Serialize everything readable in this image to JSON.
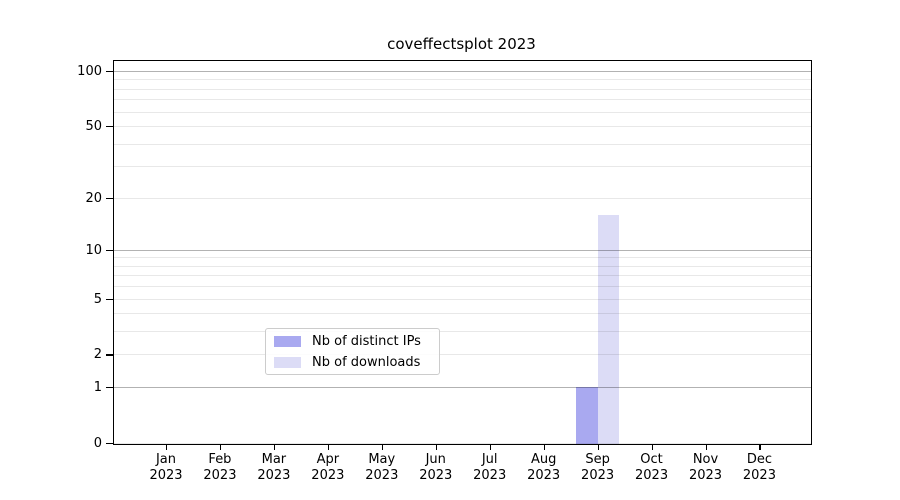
{
  "chart_data": {
    "type": "bar",
    "title": "coveffectsplot 2023",
    "y_scale": "log1p",
    "ylim": [
      0,
      114
    ],
    "grid": true,
    "y_ticks": [
      0,
      1,
      2,
      5,
      10,
      20,
      50,
      100
    ],
    "gridlines_major": [
      1,
      10,
      100
    ],
    "gridlines_minor": [
      0,
      2,
      3,
      4,
      5,
      6,
      7,
      8,
      9,
      20,
      30,
      40,
      50,
      60,
      70,
      80,
      90
    ],
    "categories": [
      "Jan",
      "Feb",
      "Mar",
      "Apr",
      "May",
      "Jun",
      "Jul",
      "Aug",
      "Sep",
      "Oct",
      "Nov",
      "Dec"
    ],
    "category_year": "2023",
    "series": [
      {
        "name": "Nb of distinct IPs",
        "color": "#a9a9f0",
        "values": [
          0,
          0,
          0,
          0,
          0,
          0,
          0,
          0,
          1,
          0,
          0,
          0
        ]
      },
      {
        "name": "Nb of downloads",
        "color": "#dcdcf6",
        "values": [
          0,
          0,
          0,
          0,
          0,
          0,
          0,
          0,
          16,
          0,
          0,
          0
        ]
      }
    ],
    "legend_position": "lower center inside axes"
  },
  "colors": {
    "spine": "#000000",
    "legend_border": "#cccccc",
    "major_grid": "#b5b5b5",
    "minor_grid": "#e8e8e8"
  }
}
